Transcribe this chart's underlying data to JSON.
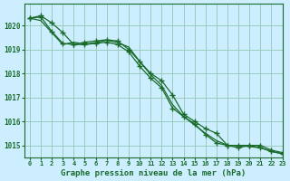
{
  "title": "Graphe pression niveau de la mer (hPa)",
  "background_color": "#cceeff",
  "plot_bg_color": "#cceeff",
  "grid_color": "#99ccbb",
  "line_color": "#1a6b2a",
  "xlim": [
    -0.5,
    23
  ],
  "ylim": [
    1014.5,
    1020.9
  ],
  "xtick_positions": [
    0,
    1,
    2,
    3,
    4,
    5,
    6,
    7,
    8,
    9,
    10,
    11,
    12,
    13,
    14,
    15,
    16,
    17,
    18,
    19,
    20,
    21,
    22,
    23
  ],
  "xtick_labels": [
    "0",
    "1",
    "2",
    "3",
    "4",
    "5",
    "6",
    "7",
    "8",
    "9",
    "10",
    "11",
    "12",
    "13",
    "14",
    "15",
    "16",
    "17",
    "18",
    "19",
    "20",
    "21",
    "22",
    "23"
  ],
  "ytick_values": [
    1015,
    1016,
    1017,
    1018,
    1019,
    1020
  ],
  "series": [
    [
      1020.3,
      1020.4,
      1020.1,
      1019.7,
      1019.2,
      1019.3,
      1019.35,
      1019.4,
      1019.35,
      1019.0,
      1018.5,
      1018.0,
      1017.7,
      1017.1,
      1016.3,
      1016.0,
      1015.7,
      1015.5,
      1015.0,
      1014.9,
      1015.0,
      1015.0,
      1014.8,
      1014.7
    ],
    [
      1020.3,
      1020.35,
      1019.75,
      1019.25,
      1019.2,
      1019.2,
      1019.25,
      1019.3,
      1019.2,
      1018.9,
      1018.3,
      1017.8,
      1017.4,
      1016.55,
      1016.2,
      1015.9,
      1015.45,
      1015.1,
      1015.0,
      1015.0,
      1015.0,
      1014.9,
      1014.75,
      1014.65
    ],
    [
      1020.3,
      1020.2,
      1019.7,
      1019.2,
      1019.3,
      1019.22,
      1019.28,
      1019.38,
      1019.28,
      1019.1,
      1018.5,
      1017.95,
      1017.5,
      1016.7,
      1016.2,
      1015.85,
      1015.5,
      1015.2,
      1015.0,
      1015.0,
      1014.95,
      1014.9,
      1014.75,
      1014.65
    ]
  ],
  "has_markers": [
    true,
    true,
    false
  ]
}
